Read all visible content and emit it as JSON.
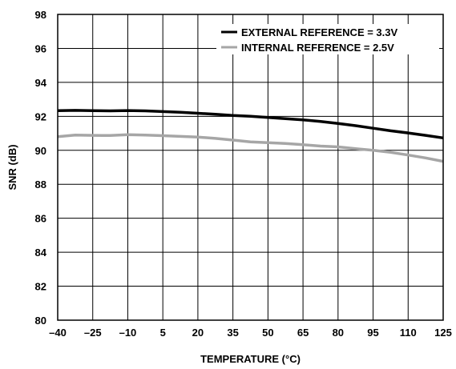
{
  "chart_data": {
    "type": "line",
    "xlabel": "TEMPERATURE (°C)",
    "ylabel": "SNR (dB)",
    "xlim": [
      -40,
      125
    ],
    "ylim": [
      80,
      98
    ],
    "xticks": [
      -40,
      -25,
      -10,
      5,
      20,
      35,
      50,
      65,
      80,
      95,
      110,
      125
    ],
    "yticks": [
      80,
      82,
      84,
      86,
      88,
      90,
      92,
      94,
      96,
      98
    ],
    "xtick_labels": [
      "–40",
      "–25",
      "–10",
      "5",
      "20",
      "35",
      "50",
      "65",
      "80",
      "95",
      "110",
      "125"
    ],
    "ytick_labels": [
      "80",
      "82",
      "84",
      "86",
      "88",
      "90",
      "92",
      "94",
      "96",
      "98"
    ],
    "grid": true,
    "legend_position": "top-right",
    "series": [
      {
        "name": "EXTERNAL REFERENCE = 3.3V",
        "color": "#000000",
        "x": [
          -40,
          -32.5,
          -25,
          -17.5,
          -10,
          -2.5,
          5,
          12.5,
          20,
          27.5,
          35,
          42.5,
          50,
          57.5,
          65,
          72.5,
          80,
          87.5,
          95,
          102.5,
          110,
          117.5,
          125
        ],
        "y": [
          92.33,
          92.35,
          92.33,
          92.32,
          92.34,
          92.32,
          92.28,
          92.24,
          92.18,
          92.12,
          92.05,
          92.0,
          91.93,
          91.86,
          91.79,
          91.7,
          91.58,
          91.45,
          91.3,
          91.15,
          91.02,
          90.88,
          90.73
        ]
      },
      {
        "name": "INTERNAL REFERENCE = 2.5V",
        "color": "#a6a6a6",
        "x": [
          -40,
          -32.5,
          -25,
          -17.5,
          -10,
          -2.5,
          5,
          12.5,
          20,
          27.5,
          35,
          42.5,
          50,
          57.5,
          65,
          72.5,
          80,
          87.5,
          95,
          102.5,
          110,
          117.5,
          125
        ],
        "y": [
          90.8,
          90.9,
          90.88,
          90.87,
          90.92,
          90.9,
          90.86,
          90.82,
          90.78,
          90.7,
          90.6,
          90.5,
          90.45,
          90.4,
          90.33,
          90.25,
          90.2,
          90.1,
          90.0,
          89.88,
          89.72,
          89.55,
          89.35
        ]
      }
    ]
  }
}
